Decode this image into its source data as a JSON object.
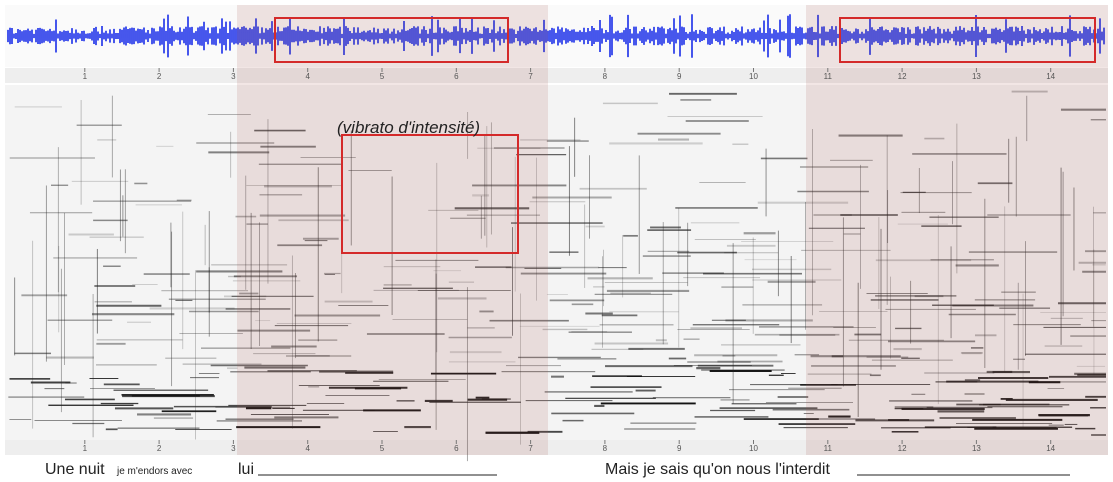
{
  "timeline": {
    "ticks": [
      1,
      2,
      3,
      4,
      5,
      6,
      7,
      8,
      9,
      10,
      11,
      12,
      13,
      14
    ]
  },
  "annotation": "(vibrato d'intensité)",
  "lyrics": {
    "line1": {
      "part1": "Une nuit",
      "part2": "je m'endors avec",
      "part3": "lui"
    },
    "line2": "Mais je sais qu'on nous l'interdit"
  }
}
